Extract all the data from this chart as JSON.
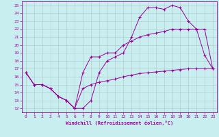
{
  "xlabel": "Windchill (Refroidissement éolien,°C)",
  "background_color": "#c8eef0",
  "grid_color": "#b0c8ca",
  "line_color": "#990099",
  "xlim": [
    -0.5,
    23.5
  ],
  "ylim": [
    11.5,
    25.5
  ],
  "xticks": [
    0,
    1,
    2,
    3,
    4,
    5,
    6,
    7,
    8,
    9,
    10,
    11,
    12,
    13,
    14,
    15,
    16,
    17,
    18,
    19,
    20,
    21,
    22,
    23
  ],
  "yticks": [
    12,
    13,
    14,
    15,
    16,
    17,
    18,
    19,
    20,
    21,
    22,
    23,
    24,
    25
  ],
  "line1_x": [
    0,
    1,
    2,
    3,
    4,
    5,
    6,
    7,
    8,
    9,
    10,
    11,
    12,
    13,
    14,
    15,
    16,
    17,
    18,
    19,
    20,
    21,
    22,
    23
  ],
  "line1_y": [
    16.5,
    15.0,
    15.0,
    14.5,
    13.5,
    13.0,
    12.0,
    12.0,
    13.0,
    16.5,
    18.0,
    18.5,
    19.0,
    21.0,
    23.5,
    24.7,
    24.7,
    24.5,
    25.0,
    24.7,
    23.0,
    22.0,
    18.7,
    17.0
  ],
  "line2_x": [
    0,
    1,
    2,
    3,
    4,
    5,
    6,
    7,
    8,
    9,
    10,
    11,
    12,
    13,
    14,
    15,
    16,
    17,
    18,
    19,
    20,
    21,
    22,
    23
  ],
  "line2_y": [
    16.5,
    15.0,
    15.0,
    14.5,
    13.5,
    13.0,
    12.0,
    16.5,
    18.5,
    18.5,
    19.0,
    19.0,
    20.0,
    20.5,
    21.0,
    21.3,
    21.5,
    21.7,
    22.0,
    22.0,
    22.0,
    22.0,
    22.0,
    17.0
  ],
  "line3_x": [
    0,
    1,
    2,
    3,
    4,
    5,
    6,
    7,
    8,
    9,
    10,
    11,
    12,
    13,
    14,
    15,
    16,
    17,
    18,
    19,
    20,
    21,
    22,
    23
  ],
  "line3_y": [
    16.5,
    15.0,
    15.0,
    14.5,
    13.5,
    13.0,
    12.0,
    14.5,
    15.0,
    15.3,
    15.5,
    15.7,
    16.0,
    16.2,
    16.4,
    16.5,
    16.6,
    16.7,
    16.8,
    16.9,
    17.0,
    17.0,
    17.0,
    17.0
  ],
  "tick_fontsize": 4.5,
  "xlabel_fontsize": 5.0
}
